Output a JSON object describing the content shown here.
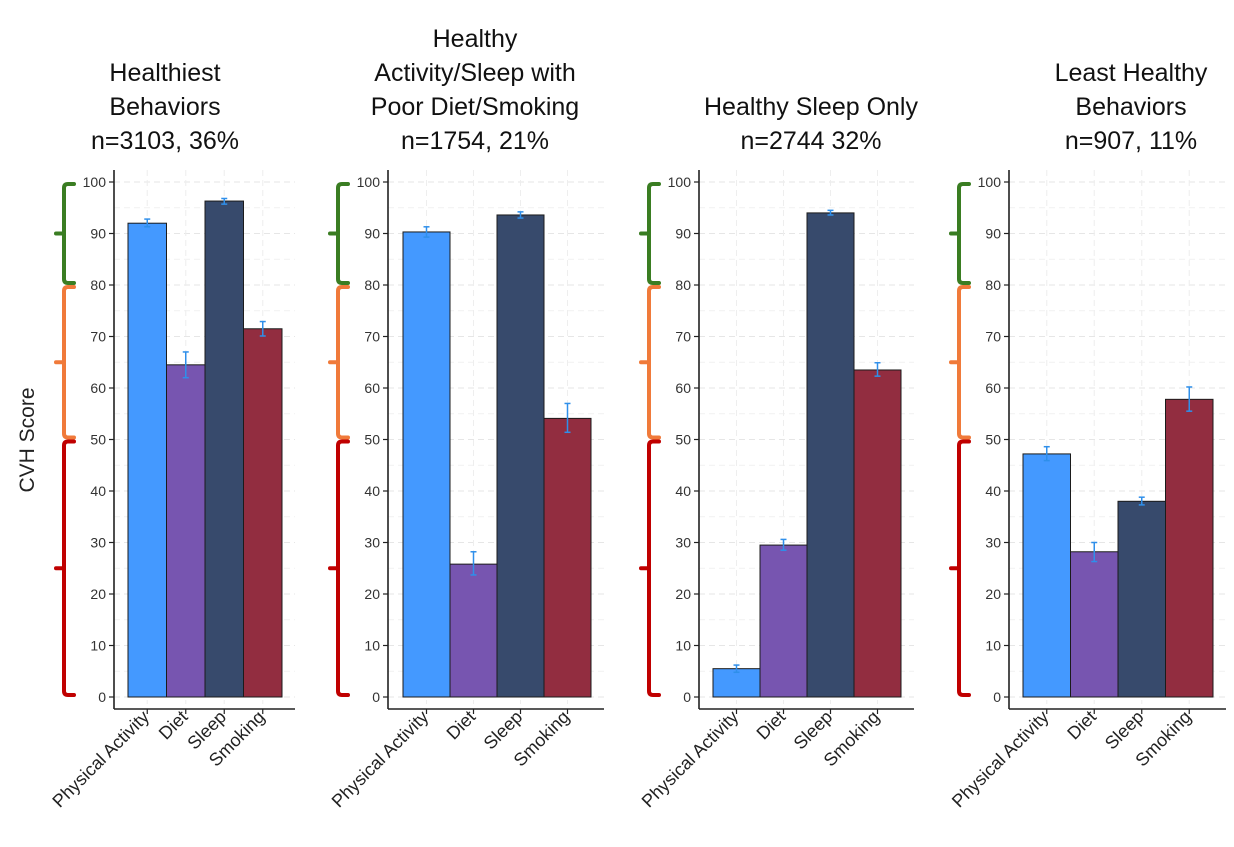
{
  "y_axis_label": "CVH Score",
  "chart_data": [
    {
      "type": "bar",
      "title_lines": [
        "Healthiest",
        "Behaviors",
        "n=3103, 36%"
      ],
      "categories": [
        "Physical Activity",
        "Diet",
        "Sleep",
        "Smoking"
      ],
      "values": [
        92,
        64.5,
        96.3,
        71.5
      ],
      "error_bars": [
        [
          91.3,
          92.8
        ],
        [
          62,
          67
        ],
        [
          95.7,
          96.8
        ],
        [
          70.1,
          72.9
        ]
      ],
      "ylim": [
        0,
        100
      ],
      "yticks": [
        "0",
        "10",
        "20",
        "30",
        "40",
        "50",
        "60",
        "70",
        "80",
        "90",
        "100"
      ]
    },
    {
      "type": "bar",
      "title_lines": [
        "Healthy",
        "Activity/Sleep with",
        "Poor Diet/Smoking",
        "n=1754, 21%"
      ],
      "categories": [
        "Physical Activity",
        "Diet",
        "Sleep",
        "Smoking"
      ],
      "values": [
        90.3,
        25.8,
        93.6,
        54.1
      ],
      "error_bars": [
        [
          89.3,
          91.3
        ],
        [
          23.7,
          28.2
        ],
        [
          93.0,
          94.2
        ],
        [
          51.4,
          57.0
        ]
      ],
      "ylim": [
        0,
        100
      ],
      "yticks": [
        "0",
        "10",
        "20",
        "30",
        "40",
        "50",
        "60",
        "70",
        "80",
        "90",
        "100"
      ]
    },
    {
      "type": "bar",
      "title_lines": [
        "Healthy Sleep Only",
        "n=2744 32%"
      ],
      "categories": [
        "Physical Activity",
        "Diet",
        "Sleep",
        "Smoking"
      ],
      "values": [
        5.5,
        29.5,
        94.0,
        63.5
      ],
      "error_bars": [
        [
          4.8,
          6.2
        ],
        [
          28.5,
          30.6
        ],
        [
          93.6,
          94.5
        ],
        [
          62.3,
          64.9
        ]
      ],
      "ylim": [
        0,
        100
      ],
      "yticks": [
        "0",
        "10",
        "20",
        "30",
        "40",
        "50",
        "60",
        "70",
        "80",
        "90",
        "100"
      ]
    },
    {
      "type": "bar",
      "title_lines": [
        "Least Healthy",
        "Behaviors",
        "n=907, 11%"
      ],
      "categories": [
        "Physical Activity",
        "Diet",
        "Sleep",
        "Smoking"
      ],
      "values": [
        47.2,
        28.2,
        38.0,
        57.8
      ],
      "error_bars": [
        [
          45.9,
          48.6
        ],
        [
          26.3,
          30.0
        ],
        [
          37.3,
          38.8
        ],
        [
          55.5,
          60.2
        ]
      ],
      "ylim": [
        0,
        100
      ],
      "yticks": [
        "0",
        "10",
        "20",
        "30",
        "40",
        "50",
        "60",
        "70",
        "80",
        "90",
        "100"
      ]
    }
  ],
  "bar_colors": [
    "#4499FF",
    "#7755B0",
    "#374A6C",
    "#922D40"
  ],
  "error_bar_color": "#2F8FEA",
  "bracket_ranges": [
    {
      "from": 80,
      "to": 100,
      "color": "#3A7D22"
    },
    {
      "from": 50,
      "to": 80,
      "color": "#F07A3A"
    },
    {
      "from": 0,
      "to": 50,
      "color": "#C00000"
    }
  ]
}
